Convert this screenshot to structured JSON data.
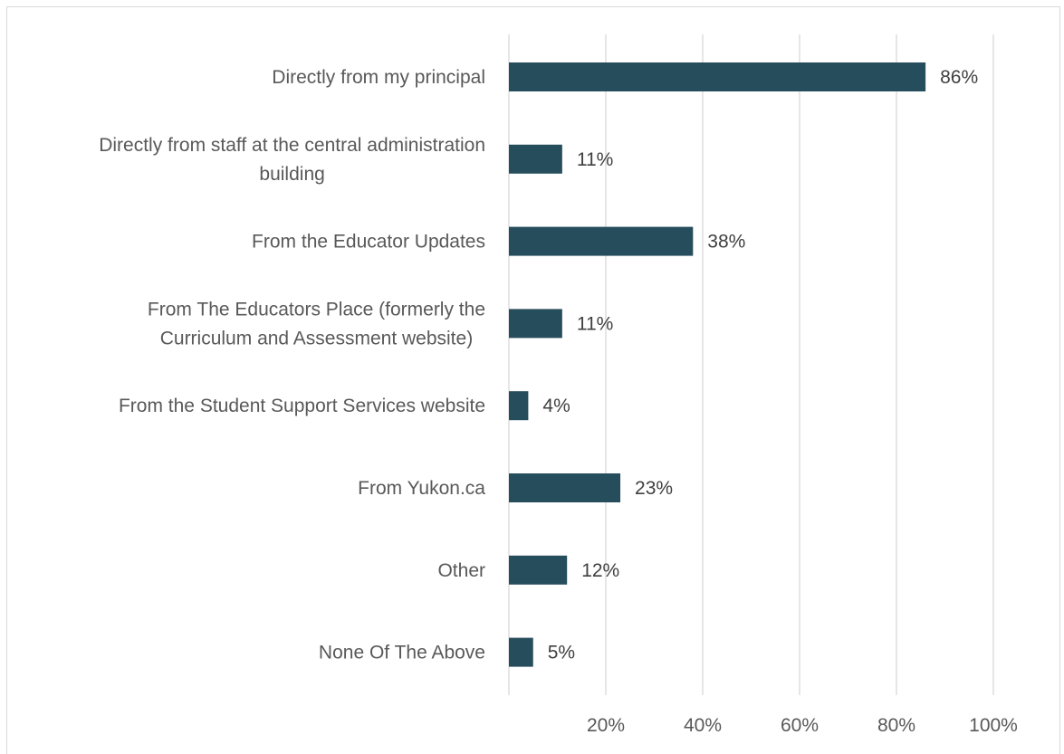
{
  "chart_data": {
    "type": "bar",
    "orientation": "horizontal",
    "categories": [
      "Directly from my principal",
      "Directly from staff at the central administration building",
      "From the Educator Updates",
      "From The Educators Place (formerly the Curriculum and Assessment website)",
      "From the Student Support Services website",
      "From Yukon.ca",
      "Other",
      "None Of The Above"
    ],
    "category_lines": [
      [
        "Directly from my principal"
      ],
      [
        "Directly from staff at the central administration",
        "building"
      ],
      [
        "From the Educator Updates"
      ],
      [
        "From The Educators Place (formerly the",
        "Curriculum and Assessment website)"
      ],
      [
        "From the Student Support Services website"
      ],
      [
        "From Yukon.ca"
      ],
      [
        "Other"
      ],
      [
        "None Of The Above"
      ]
    ],
    "values": [
      86,
      11,
      38,
      11,
      4,
      23,
      12,
      5
    ],
    "data_labels": [
      "86%",
      "11%",
      "38%",
      "11%",
      "4%",
      "23%",
      "12%",
      "5%"
    ],
    "xlim": [
      0,
      100
    ],
    "x_ticks": [
      20,
      40,
      60,
      80,
      100
    ],
    "x_tick_labels": [
      "20%",
      "40%",
      "60%",
      "80%",
      "100%"
    ],
    "grid": true,
    "legend": false,
    "title": "",
    "xlabel": "",
    "ylabel": "",
    "colors": {
      "bar": "#264d5c",
      "grid": "#d9d9d9",
      "category_text": "#595959",
      "value_text": "#404040",
      "tick_text": "#595959"
    }
  }
}
